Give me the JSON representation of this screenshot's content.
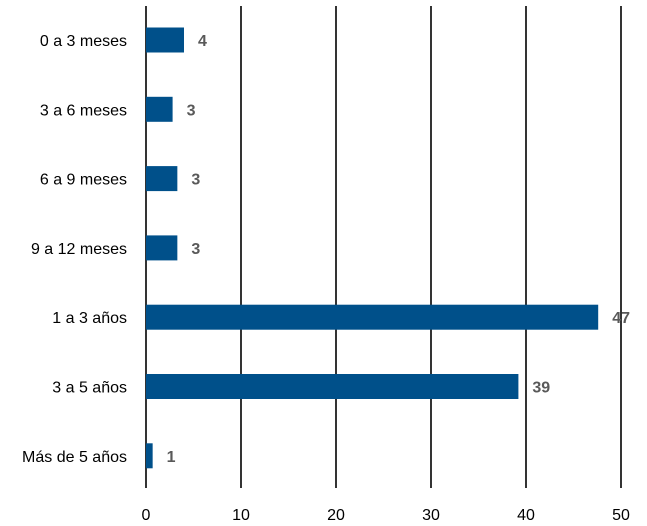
{
  "chart_data": {
    "type": "bar",
    "orientation": "horizontal",
    "categories": [
      "0 a 3 meses",
      "3 a 6 meses",
      "6 a 9 meses",
      "9 a 12 meses",
      "1 a 3 años",
      "3 a 5 años",
      "Más de 5 años"
    ],
    "values": [
      4,
      3,
      3,
      3,
      47,
      39,
      1
    ],
    "data_labels": [
      "4",
      "3",
      "3",
      "3",
      "47",
      "39",
      "1"
    ],
    "bar_values": [
      4.0,
      2.8,
      3.3,
      3.3,
      47.6,
      39.2,
      0.7
    ],
    "xlim": [
      0,
      50
    ],
    "xticks": [
      "0",
      "10",
      "20",
      "30",
      "40",
      "50"
    ],
    "grid": "vertical",
    "bar_color": "#00508A",
    "label_color": "#595959",
    "title": "",
    "xlabel": "",
    "ylabel": ""
  }
}
